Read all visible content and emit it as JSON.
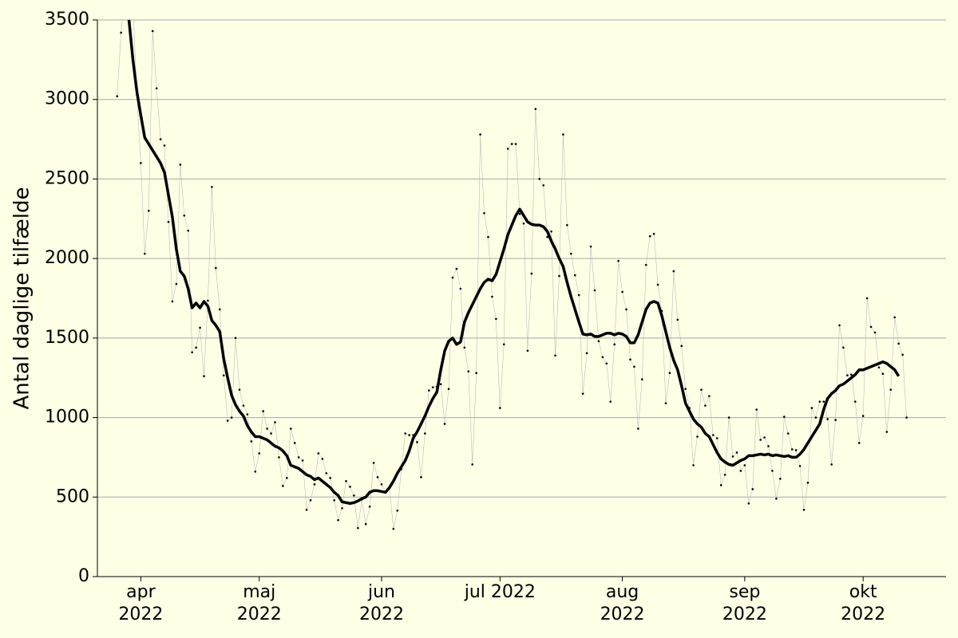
{
  "chart_data": {
    "type": "line",
    "ylabel": "Antal daglige tilfælde",
    "ylim": [
      0,
      3500
    ],
    "yticks": [
      0,
      500,
      1000,
      1500,
      2000,
      2500,
      3000,
      3500
    ],
    "grid": true,
    "xlim": [
      "2022-03-21",
      "2022-10-22"
    ],
    "xticks": [
      {
        "value": "2022-04-01",
        "label": "apr 2022"
      },
      {
        "value": "2022-05-01",
        "label": "maj 2022"
      },
      {
        "value": "2022-06-01",
        "label": "jun 2022"
      },
      {
        "value": "2022-07-01",
        "label": "jul 2022"
      },
      {
        "value": "2022-08-01",
        "label": "aug 2022"
      },
      {
        "value": "2022-09-01",
        "label": "sep 2022"
      },
      {
        "value": "2022-10-01",
        "label": "okt 2022"
      }
    ],
    "x": [
      "2022-03-26",
      "2022-03-27",
      "2022-03-28",
      "2022-03-29",
      "2022-03-30",
      "2022-03-31",
      "2022-04-01",
      "2022-04-02",
      "2022-04-03",
      "2022-04-04",
      "2022-04-05",
      "2022-04-06",
      "2022-04-07",
      "2022-04-08",
      "2022-04-09",
      "2022-04-10",
      "2022-04-11",
      "2022-04-12",
      "2022-04-13",
      "2022-04-14",
      "2022-04-15",
      "2022-04-16",
      "2022-04-17",
      "2022-04-18",
      "2022-04-19",
      "2022-04-20",
      "2022-04-21",
      "2022-04-22",
      "2022-04-23",
      "2022-04-24",
      "2022-04-25",
      "2022-04-26",
      "2022-04-27",
      "2022-04-28",
      "2022-04-29",
      "2022-04-30",
      "2022-05-01",
      "2022-05-02",
      "2022-05-03",
      "2022-05-04",
      "2022-05-05",
      "2022-05-06",
      "2022-05-07",
      "2022-05-08",
      "2022-05-09",
      "2022-05-10",
      "2022-05-11",
      "2022-05-12",
      "2022-05-13",
      "2022-05-14",
      "2022-05-15",
      "2022-05-16",
      "2022-05-17",
      "2022-05-18",
      "2022-05-19",
      "2022-05-20",
      "2022-05-21",
      "2022-05-22",
      "2022-05-23",
      "2022-05-24",
      "2022-05-25",
      "2022-05-26",
      "2022-05-27",
      "2022-05-28",
      "2022-05-29",
      "2022-05-30",
      "2022-05-31",
      "2022-06-01",
      "2022-06-02",
      "2022-06-03",
      "2022-06-04",
      "2022-06-05",
      "2022-06-06",
      "2022-06-07",
      "2022-06-08",
      "2022-06-09",
      "2022-06-10",
      "2022-06-11",
      "2022-06-12",
      "2022-06-13",
      "2022-06-14",
      "2022-06-15",
      "2022-06-16",
      "2022-06-17",
      "2022-06-18",
      "2022-06-19",
      "2022-06-20",
      "2022-06-21",
      "2022-06-22",
      "2022-06-23",
      "2022-06-24",
      "2022-06-25",
      "2022-06-26",
      "2022-06-27",
      "2022-06-28",
      "2022-06-29",
      "2022-06-30",
      "2022-07-01",
      "2022-07-02",
      "2022-07-03",
      "2022-07-04",
      "2022-07-05",
      "2022-07-06",
      "2022-07-07",
      "2022-07-08",
      "2022-07-09",
      "2022-07-10",
      "2022-07-11",
      "2022-07-12",
      "2022-07-13",
      "2022-07-14",
      "2022-07-15",
      "2022-07-16",
      "2022-07-17",
      "2022-07-18",
      "2022-07-19",
      "2022-07-20",
      "2022-07-21",
      "2022-07-22",
      "2022-07-23",
      "2022-07-24",
      "2022-07-25",
      "2022-07-26",
      "2022-07-27",
      "2022-07-28",
      "2022-07-29",
      "2022-07-30",
      "2022-07-31",
      "2022-08-01",
      "2022-08-02",
      "2022-08-03",
      "2022-08-04",
      "2022-08-05",
      "2022-08-06",
      "2022-08-07",
      "2022-08-08",
      "2022-08-09",
      "2022-08-10",
      "2022-08-11",
      "2022-08-12",
      "2022-08-13",
      "2022-08-14",
      "2022-08-15",
      "2022-08-16",
      "2022-08-17",
      "2022-08-18",
      "2022-08-19",
      "2022-08-20",
      "2022-08-21",
      "2022-08-22",
      "2022-08-23",
      "2022-08-24",
      "2022-08-25",
      "2022-08-26",
      "2022-08-27",
      "2022-08-28",
      "2022-08-29",
      "2022-08-30",
      "2022-08-31",
      "2022-09-01",
      "2022-09-02",
      "2022-09-03",
      "2022-09-04",
      "2022-09-05",
      "2022-09-06",
      "2022-09-07",
      "2022-09-08",
      "2022-09-09",
      "2022-09-10",
      "2022-09-11",
      "2022-09-12",
      "2022-09-13",
      "2022-09-14",
      "2022-09-15",
      "2022-09-16",
      "2022-09-17",
      "2022-09-18",
      "2022-09-19",
      "2022-09-20",
      "2022-09-21",
      "2022-09-22",
      "2022-09-23",
      "2022-09-24",
      "2022-09-25",
      "2022-09-26",
      "2022-09-27",
      "2022-09-28",
      "2022-09-29",
      "2022-09-30",
      "2022-10-01",
      "2022-10-02",
      "2022-10-03",
      "2022-10-04",
      "2022-10-05",
      "2022-10-06",
      "2022-10-07",
      "2022-10-08",
      "2022-10-09",
      "2022-10-10",
      "2022-10-11",
      "2022-10-12"
    ],
    "series": [
      {
        "color": "#b0b0b0",
        "linewidth": 0.5,
        "markers": true,
        "marker_color": "#000000",
        "values": [
          3020,
          3420,
          3700,
          3800,
          3600,
          3030,
          2600,
          2030,
          2300,
          3430,
          3070,
          2750,
          2710,
          2230,
          1730,
          1840,
          2590,
          2270,
          2175,
          1410,
          1440,
          1565,
          1260,
          1735,
          2450,
          1940,
          1680,
          1265,
          980,
          1000,
          1500,
          1175,
          1075,
          1020,
          850,
          660,
          775,
          1040,
          930,
          900,
          970,
          750,
          570,
          620,
          930,
          840,
          750,
          730,
          420,
          480,
          580,
          775,
          740,
          650,
          620,
          480,
          355,
          430,
          600,
          565,
          510,
          305,
          485,
          330,
          440,
          715,
          625,
          580,
          535,
          560,
          300,
          415,
          675,
          900,
          890,
          890,
          845,
          625,
          900,
          1170,
          1190,
          1195,
          1210,
          960,
          1180,
          1880,
          1935,
          1810,
          1440,
          1290,
          705,
          1280,
          2780,
          2285,
          2135,
          1760,
          1620,
          1060,
          1460,
          2690,
          2720,
          2720,
          2280,
          2220,
          1420,
          1905,
          2940,
          2500,
          2460,
          2135,
          2170,
          1390,
          1890,
          2780,
          2210,
          2030,
          1895,
          1770,
          1150,
          1405,
          2075,
          1800,
          1480,
          1380,
          1340,
          1100,
          1460,
          1985,
          1790,
          1680,
          1365,
          1320,
          930,
          1240,
          1960,
          2140,
          2155,
          1835,
          1670,
          1090,
          1280,
          1920,
          1615,
          1450,
          1180,
          1060,
          700,
          880,
          1175,
          1075,
          1135,
          890,
          870,
          575,
          640,
          1000,
          755,
          780,
          665,
          700,
          460,
          550,
          1050,
          860,
          875,
          820,
          665,
          490,
          615,
          1005,
          900,
          800,
          795,
          695,
          420,
          590,
          1060,
          1000,
          1100,
          1100,
          990,
          705,
          985,
          1580,
          1440,
          1265,
          1270,
          1100,
          840,
          1010,
          1750,
          1570,
          1535,
          1315,
          1275,
          910,
          1175,
          1630,
          1465,
          1395,
          1000
        ]
      },
      {
        "color": "#000000",
        "linewidth": 3.5,
        "values": [
          null,
          null,
          3800,
          3500,
          3250,
          3050,
          2900,
          2760,
          2720,
          2680,
          2640,
          2600,
          2540,
          2400,
          2260,
          2060,
          1920,
          1890,
          1810,
          1690,
          1720,
          1690,
          1730,
          1700,
          1610,
          1580,
          1540,
          1370,
          1250,
          1140,
          1080,
          1040,
          1010,
          950,
          910,
          880,
          880,
          870,
          860,
          840,
          820,
          810,
          790,
          760,
          700,
          690,
          680,
          660,
          640,
          630,
          610,
          620,
          600,
          580,
          560,
          530,
          510,
          470,
          465,
          460,
          465,
          475,
          490,
          500,
          530,
          540,
          540,
          535,
          530,
          560,
          600,
          650,
          690,
          730,
          790,
          870,
          910,
          960,
          1010,
          1070,
          1120,
          1160,
          1300,
          1420,
          1480,
          1500,
          1460,
          1475,
          1600,
          1660,
          1710,
          1760,
          1810,
          1850,
          1870,
          1860,
          1900,
          1980,
          2060,
          2150,
          2210,
          2270,
          2310,
          2270,
          2230,
          2215,
          2210,
          2210,
          2200,
          2170,
          2110,
          2060,
          2000,
          1950,
          1850,
          1760,
          1680,
          1600,
          1525,
          1520,
          1525,
          1510,
          1510,
          1520,
          1530,
          1530,
          1520,
          1530,
          1525,
          1510,
          1470,
          1470,
          1520,
          1600,
          1680,
          1720,
          1730,
          1720,
          1640,
          1540,
          1440,
          1360,
          1300,
          1200,
          1090,
          1040,
          990,
          960,
          940,
          900,
          880,
          830,
          780,
          740,
          720,
          705,
          700,
          715,
          730,
          740,
          760,
          760,
          765,
          770,
          765,
          770,
          760,
          765,
          760,
          755,
          760,
          750,
          750,
          770,
          800,
          840,
          880,
          920,
          960,
          1050,
          1120,
          1150,
          1170,
          1200,
          1210,
          1230,
          1250,
          1270,
          1300,
          1300,
          1310,
          1320,
          1330,
          1340,
          1350,
          1340,
          1320,
          1300,
          1260,
          null,
          null
        ]
      }
    ]
  }
}
